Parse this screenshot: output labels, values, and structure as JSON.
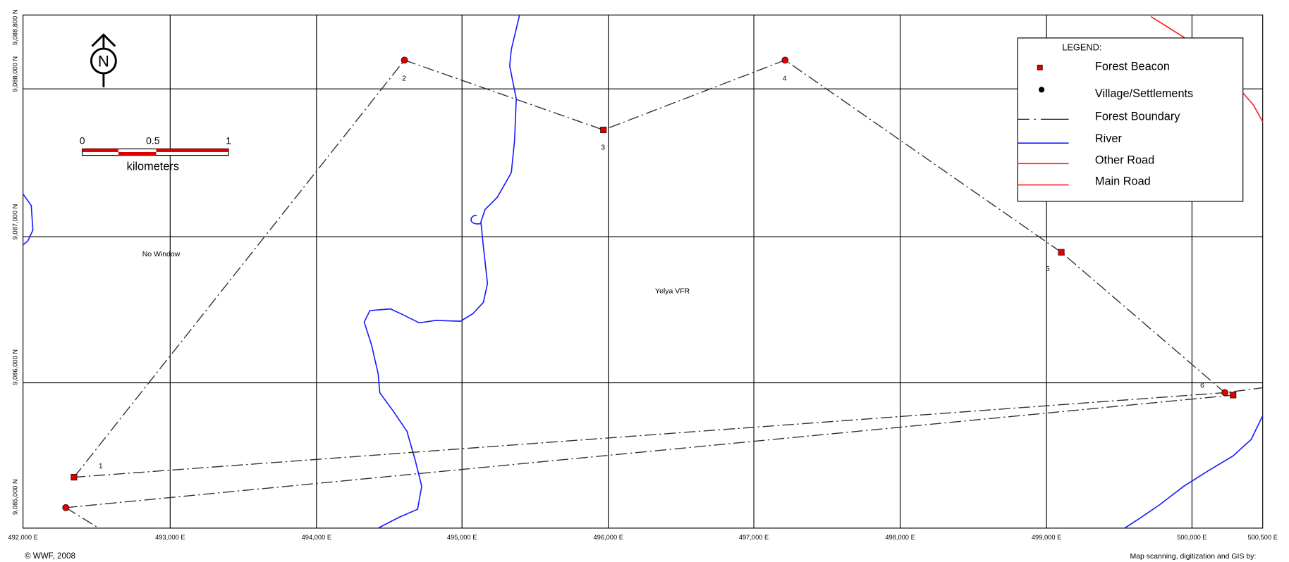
{
  "north": "N",
  "scale_bar": {
    "labels": [
      "0",
      "0.5",
      "1"
    ],
    "unit": "kilometers"
  },
  "legend": {
    "title": "LEGEND:",
    "items": [
      "Forest Beacon",
      "Village/Settlements",
      "Forest Boundary",
      "River",
      "Other Road",
      "Main Road"
    ]
  },
  "beacons": [
    "1",
    "2",
    "3",
    "4",
    "5",
    "6"
  ],
  "places": [
    "No Window",
    "Yelya VFR"
  ],
  "x_labels": [
    "492,000 E",
    "493,000 E",
    "494,000 E",
    "495,000 E",
    "496,000 E",
    "497,000 E",
    "498,000 E",
    "499,000 E",
    "500,000 E",
    "500,500 E"
  ],
  "y_labels": [
    "9,085,000 N",
    "9,086,000 N",
    "9,087,000 N",
    "9,088,000 N",
    "9,088,800 N"
  ],
  "footer": {
    "copyright": "© WWF, 2008",
    "credit": "Map scanning, digitization and GIS by:"
  }
}
